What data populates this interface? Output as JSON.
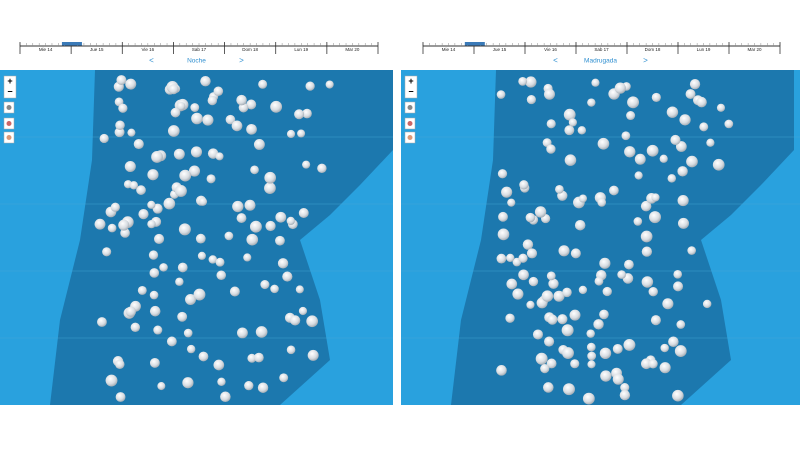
{
  "panels": [
    {
      "days": [
        "Mie 14",
        "Jue 15",
        "Vie 16",
        "Sab 17",
        "Dom 18",
        "Lun 19",
        "Mar 20"
      ],
      "prev": "<",
      "period": "Noche",
      "next": ">",
      "zoom_in": "+",
      "zoom_out": "−"
    },
    {
      "days": [
        "Mie 14",
        "Jue 15",
        "Vie 16",
        "Sab 17",
        "Dom 18",
        "Lun 19",
        "Mar 20"
      ],
      "prev": "<",
      "period": "Madrugada",
      "next": ">",
      "zoom_in": "+",
      "zoom_out": "−"
    }
  ]
}
